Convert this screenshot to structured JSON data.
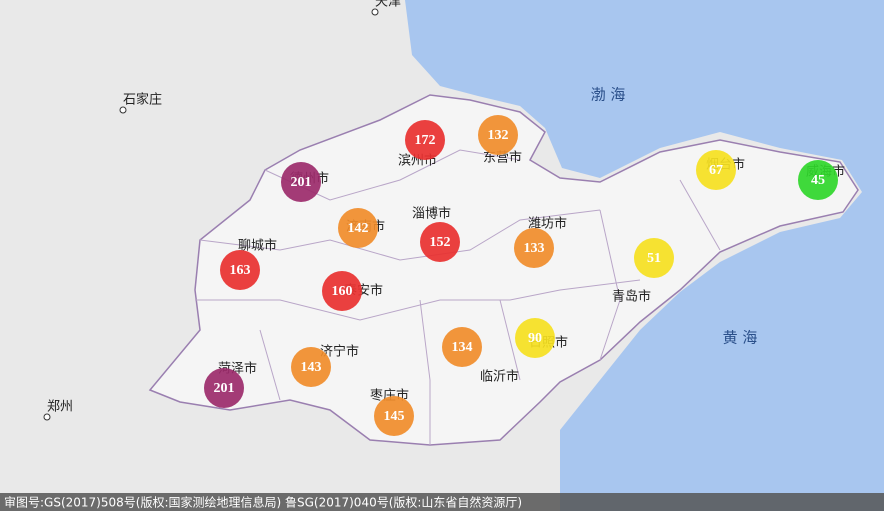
{
  "seas": [
    "渤 海",
    "黄 海"
  ],
  "outside_cities": [
    "天津",
    "石家庄",
    "郑州"
  ],
  "cities": [
    {
      "name": "德州市",
      "aqi": 201,
      "color": "#9b2a6a"
    },
    {
      "name": "滨州市",
      "aqi": 172,
      "color": "#e8302f"
    },
    {
      "name": "东营市",
      "aqi": 132,
      "color": "#f08c2a"
    },
    {
      "name": "烟台市",
      "aqi": 67,
      "color": "#f5df1f"
    },
    {
      "name": "威海市",
      "aqi": 45,
      "color": "#2fd62a"
    },
    {
      "name": "济南市",
      "aqi": 142,
      "color": "#f08c2a"
    },
    {
      "name": "淄博市",
      "aqi": 152,
      "color": "#e8302f"
    },
    {
      "name": "潍坊市",
      "aqi": 133,
      "color": "#f08c2a"
    },
    {
      "name": "聊城市",
      "aqi": 163,
      "color": "#e8302f"
    },
    {
      "name": "泰安市",
      "aqi": 160,
      "color": "#e8302f"
    },
    {
      "name": "青岛市",
      "aqi": 51,
      "color": "#f5df1f"
    },
    {
      "name": "日照市",
      "aqi": 90,
      "color": "#f5df1f"
    },
    {
      "name": "临沂市",
      "aqi": 134,
      "color": "#f08c2a"
    },
    {
      "name": "济宁市",
      "aqi": 143,
      "color": "#f08c2a"
    },
    {
      "name": "菏泽市",
      "aqi": 201,
      "color": "#9b2a6a"
    },
    {
      "name": "枣庄市",
      "aqi": 145,
      "color": "#f08c2a"
    }
  ],
  "footer": "审图号:GS(2017)508号(版权:国家测绘地理信息局) 鲁SG(2017)040号(版权:山东省自然资源厅)"
}
